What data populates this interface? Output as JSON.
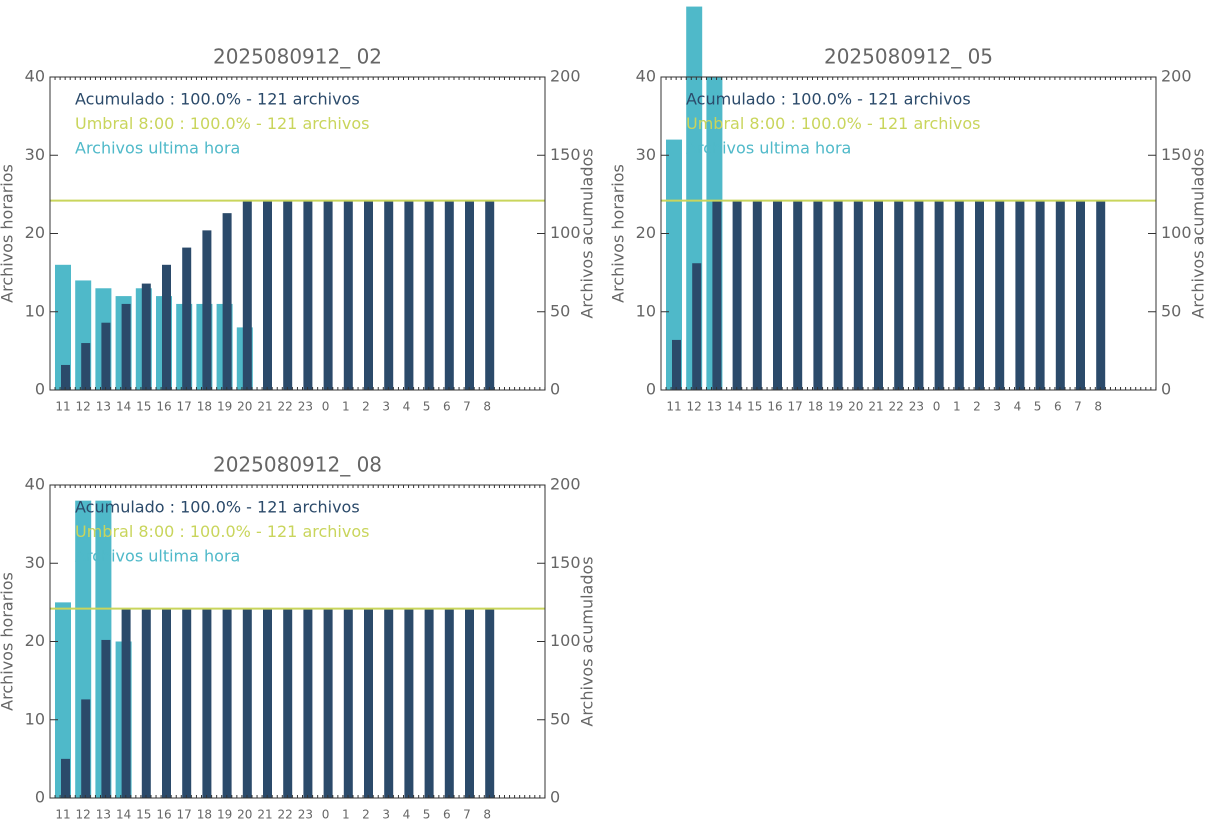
{
  "chart_data": [
    {
      "type": "bar",
      "title": "2025080912_ 02",
      "ylabel": "Archivos horarios",
      "y2label": "Archivos acumulados",
      "categories": [
        "11",
        "12",
        "13",
        "14",
        "15",
        "16",
        "17",
        "18",
        "19",
        "20",
        "21",
        "22",
        "23",
        "0",
        "1",
        "2",
        "3",
        "4",
        "5",
        "6",
        "7",
        "8"
      ],
      "series": [
        {
          "name": "Acumulado : 100.0% - 121 archivos",
          "color": "#2b4a6a",
          "axis": "y2",
          "values": [
            16,
            30,
            43,
            55,
            68,
            80,
            91,
            102,
            113,
            121,
            121,
            121,
            121,
            121,
            121,
            121,
            121,
            121,
            121,
            121,
            121,
            121
          ]
        },
        {
          "name": "Archivos ultima hora",
          "color": "#4fb9c9",
          "values": [
            16,
            14,
            13,
            12,
            13,
            12,
            11,
            11,
            11,
            8,
            0,
            0,
            0,
            0,
            0,
            0,
            0,
            0,
            0,
            0,
            0,
            0
          ]
        }
      ],
      "threshold": {
        "name": "Umbral 8:00 : 100.0% - 121 archivos",
        "value": 121,
        "color": "#c9d55c",
        "axis": "y2"
      },
      "ylim": [
        0,
        40
      ],
      "yticks": [
        0,
        10,
        20,
        30,
        40
      ],
      "y2lim": [
        0,
        200
      ],
      "y2ticks": [
        0,
        50,
        100,
        150,
        200
      ]
    },
    {
      "type": "bar",
      "title": "2025080912_ 05",
      "ylabel": "Archivos horarios",
      "y2label": "Archivos acumulados",
      "categories": [
        "11",
        "12",
        "13",
        "14",
        "15",
        "16",
        "17",
        "18",
        "19",
        "20",
        "21",
        "22",
        "23",
        "0",
        "1",
        "2",
        "3",
        "4",
        "5",
        "6",
        "7",
        "8"
      ],
      "series": [
        {
          "name": "Acumulado : 100.0% - 121 archivos",
          "color": "#2b4a6a",
          "axis": "y2",
          "values": [
            32,
            81,
            121,
            121,
            121,
            121,
            121,
            121,
            121,
            121,
            121,
            121,
            121,
            121,
            121,
            121,
            121,
            121,
            121,
            121,
            121,
            121
          ]
        },
        {
          "name": "Archivos ultima hora",
          "color": "#4fb9c9",
          "values": [
            32,
            49,
            40,
            0,
            0,
            0,
            0,
            0,
            0,
            0,
            0,
            0,
            0,
            0,
            0,
            0,
            0,
            0,
            0,
            0,
            0,
            0
          ]
        }
      ],
      "threshold": {
        "name": "Umbral 8:00 : 100.0% - 121 archivos",
        "value": 121,
        "color": "#c9d55c",
        "axis": "y2"
      },
      "ylim": [
        0,
        40
      ],
      "yticks": [
        0,
        10,
        20,
        30,
        40
      ],
      "y2lim": [
        0,
        200
      ],
      "y2ticks": [
        0,
        50,
        100,
        150,
        200
      ]
    },
    {
      "type": "bar",
      "title": "2025080912_ 08",
      "ylabel": "Archivos horarios",
      "y2label": "Archivos acumulados",
      "categories": [
        "11",
        "12",
        "13",
        "14",
        "15",
        "16",
        "17",
        "18",
        "19",
        "20",
        "21",
        "22",
        "23",
        "0",
        "1",
        "2",
        "3",
        "4",
        "5",
        "6",
        "7",
        "8"
      ],
      "series": [
        {
          "name": "Acumulado : 100.0% - 121 archivos",
          "color": "#2b4a6a",
          "axis": "y2",
          "values": [
            25,
            63,
            101,
            121,
            121,
            121,
            121,
            121,
            121,
            121,
            121,
            121,
            121,
            121,
            121,
            121,
            121,
            121,
            121,
            121,
            121,
            121
          ]
        },
        {
          "name": "Archivos ultima hora",
          "color": "#4fb9c9",
          "values": [
            25,
            38,
            38,
            20,
            0,
            0,
            0,
            0,
            0,
            0,
            0,
            0,
            0,
            0,
            0,
            0,
            0,
            0,
            0,
            0,
            0,
            0
          ]
        }
      ],
      "threshold": {
        "name": "Umbral 8:00 : 100.0% - 121 archivos",
        "value": 121,
        "color": "#c9d55c",
        "axis": "y2"
      },
      "ylim": [
        0,
        40
      ],
      "yticks": [
        0,
        10,
        20,
        30,
        40
      ],
      "y2lim": [
        0,
        200
      ],
      "y2ticks": [
        0,
        50,
        100,
        150,
        200
      ]
    }
  ]
}
